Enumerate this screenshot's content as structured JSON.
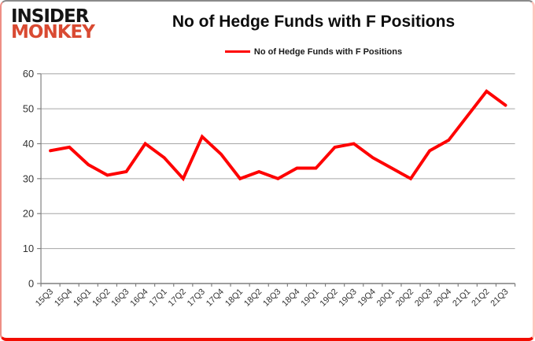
{
  "logo": {
    "line1": "INSIDER",
    "line2": "MONKEY"
  },
  "title": "No of Hedge Funds with F Positions",
  "legend": {
    "label": "No of Hedge Funds with F Positions"
  },
  "colors": {
    "line": "#fe0000",
    "logo_black": "#141414",
    "logo_red": "#d94a32",
    "grid": "#a6a6a6",
    "axis": "#7f7f7f",
    "tick_text": "#333333"
  },
  "chart_data": {
    "type": "line",
    "title": "No of Hedge Funds with F Positions",
    "xlabel": "",
    "ylabel": "",
    "categories": [
      "15Q3",
      "15Q4",
      "16Q1",
      "16Q2",
      "16Q3",
      "16Q4",
      "17Q1",
      "17Q2",
      "17Q3",
      "17Q4",
      "18Q1",
      "18Q2",
      "18Q3",
      "18Q4",
      "19Q1",
      "19Q2",
      "19Q3",
      "19Q4",
      "20Q1",
      "20Q2",
      "20Q3",
      "20Q4",
      "21Q1",
      "21Q2",
      "21Q3"
    ],
    "series": [
      {
        "name": "No of Hedge Funds with F Positions",
        "color": "#fe0000",
        "values": [
          38,
          39,
          34,
          31,
          32,
          40,
          36,
          30,
          42,
          37,
          30,
          32,
          30,
          33,
          33,
          39,
          40,
          36,
          33,
          30,
          38,
          41,
          48,
          55,
          51
        ]
      }
    ],
    "ylim": [
      0,
      60
    ],
    "ytick_step": 10,
    "grid": true,
    "legend_position": "top-center"
  }
}
